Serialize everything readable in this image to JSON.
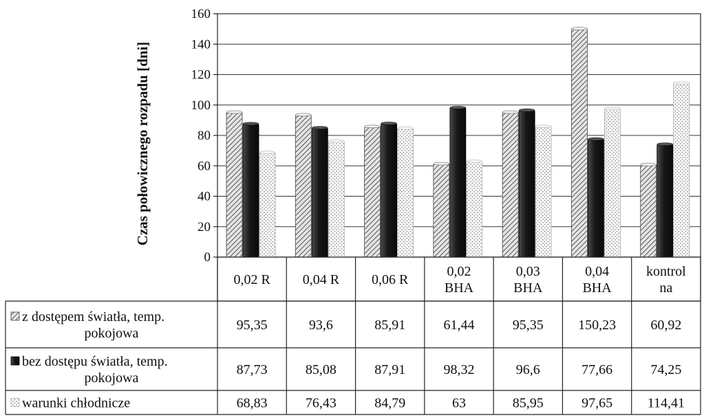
{
  "chart_data": {
    "type": "bar",
    "ylabel": "Czas połowicznego rozpadu [dni]",
    "ylim": [
      0,
      160
    ],
    "yticks": [
      0,
      20,
      40,
      60,
      80,
      100,
      120,
      140,
      160
    ],
    "grid": true,
    "legend": "data-table",
    "categories": [
      [
        "0,02 R"
      ],
      [
        "0,04 R"
      ],
      [
        "0,06 R"
      ],
      [
        "0,02",
        "BHA"
      ],
      [
        "0,03",
        "BHA"
      ],
      [
        "0,04",
        "BHA"
      ],
      [
        "kontrol",
        "na"
      ]
    ],
    "series": [
      {
        "name": [
          "z dostępem światła, temp.",
          "pokojowa"
        ],
        "values": [
          95.35,
          93.6,
          85.91,
          61.44,
          95.35,
          150.23,
          60.92
        ],
        "labels": [
          "95,35",
          "93,6",
          "85,91",
          "61,44",
          "95,35",
          "150,23",
          "60,92"
        ]
      },
      {
        "name": [
          "bez dostępu światła, temp.",
          "pokojowa"
        ],
        "values": [
          87.73,
          85.08,
          87.91,
          98.32,
          96.6,
          77.66,
          74.25
        ],
        "labels": [
          "87,73",
          "85,08",
          "87,91",
          "98,32",
          "96,6",
          "77,66",
          "74,25"
        ]
      },
      {
        "name": [
          "warunki chłodnicze"
        ],
        "values": [
          68.83,
          76.43,
          84.79,
          63,
          85.95,
          97.65,
          114.41
        ],
        "labels": [
          "68,83",
          "76,43",
          "84,79",
          "63",
          "85,95",
          "97,65",
          "114,41"
        ]
      }
    ]
  }
}
